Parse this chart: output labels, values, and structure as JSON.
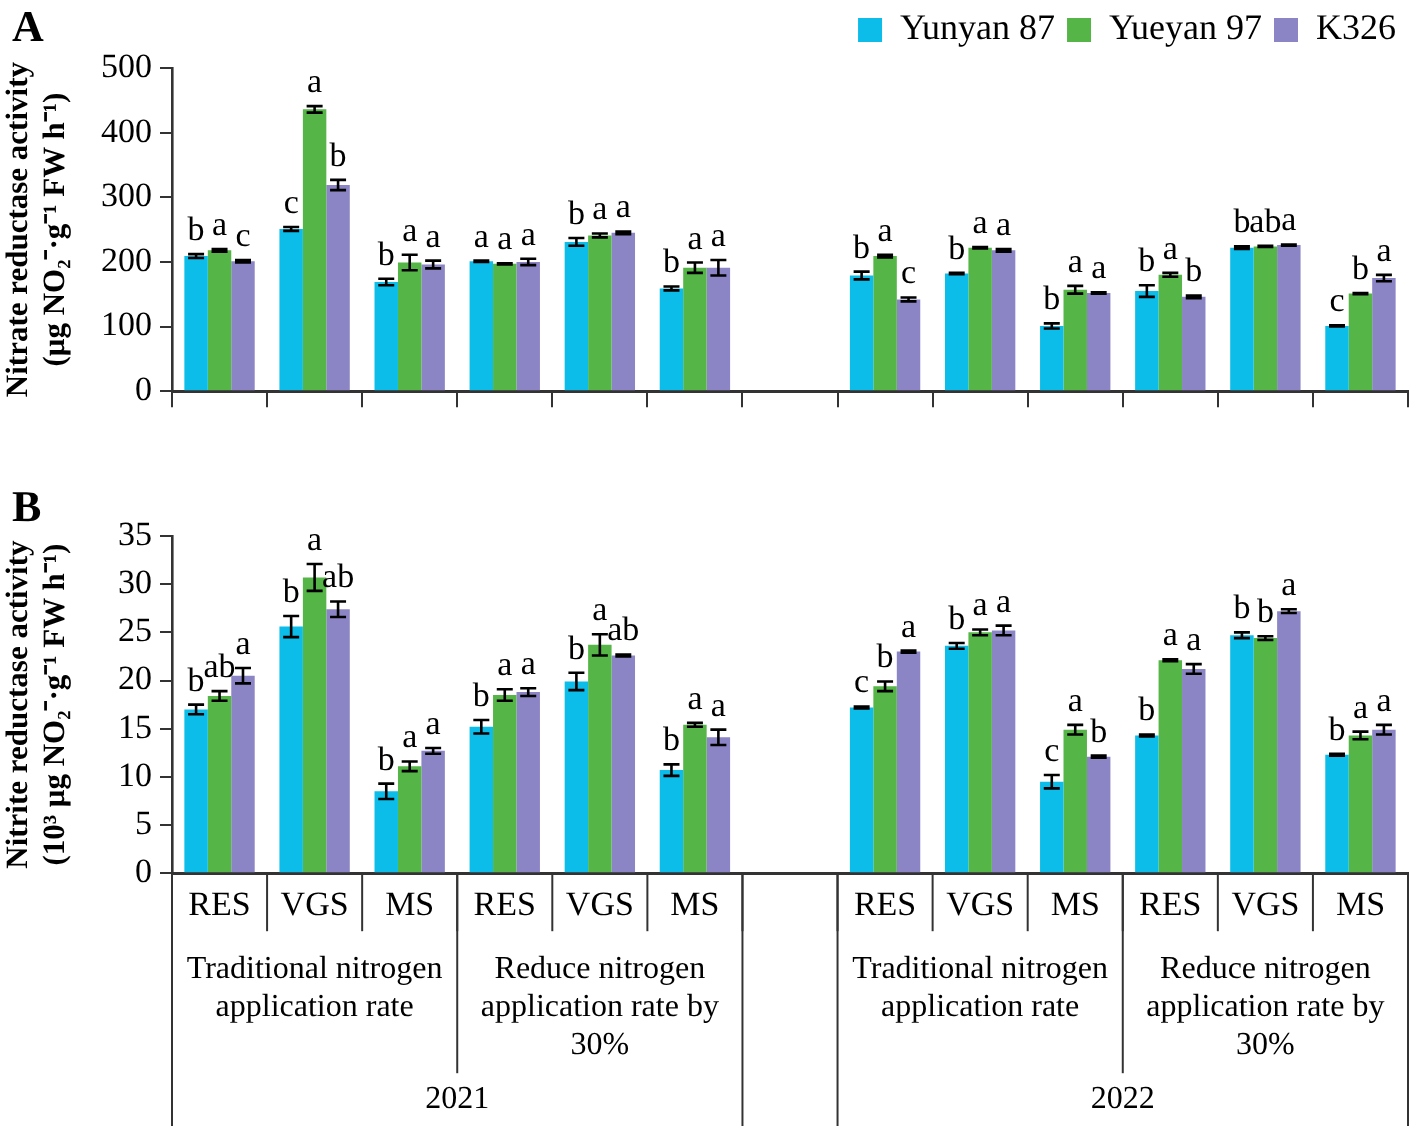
{
  "chart_data": [
    {
      "type": "bar",
      "title": "A",
      "ylabel": "Nitrate reductase activity\n(μg NO₂⁻·g⁻¹ FW h⁻¹)",
      "categories": [
        null,
        null,
        null,
        null,
        null,
        null,
        null,
        null,
        null,
        null,
        null,
        null,
        null
      ],
      "series": [
        {
          "name": "Yunyan 87",
          "color": "#0bbde8",
          "values": [
            209,
            251,
            169,
            201,
            231,
            159,
            null,
            179,
            182,
            101,
            155,
            222,
            101
          ],
          "errors": [
            3,
            3,
            5,
            1,
            6,
            3,
            null,
            6,
            1,
            4,
            9,
            2,
            1
          ],
          "value_labels": [
            "b",
            "c",
            "b",
            "a",
            "b",
            "b",
            null,
            "b",
            "b",
            "b",
            "b",
            "b",
            "c"
          ]
        },
        {
          "name": "Yueyan 97",
          "color": "#55b547",
          "values": [
            218,
            436,
            199,
            197,
            241,
            191,
            null,
            209,
            222,
            157,
            180,
            224,
            151
          ],
          "errors": [
            2,
            5,
            12,
            1,
            3,
            8,
            null,
            2,
            1,
            6,
            3,
            1,
            1
          ],
          "value_labels": [
            "a",
            "a",
            "a",
            "a",
            "a",
            "a",
            null,
            "a",
            "a",
            "a",
            "a",
            "ab",
            "b"
          ]
        },
        {
          "name": "K326",
          "color": "#8c85c5",
          "values": [
            201,
            319,
            196,
            200,
            245,
            191,
            null,
            142,
            218,
            152,
            146,
            226,
            175
          ],
          "errors": [
            2,
            8,
            6,
            5,
            2,
            12,
            null,
            3,
            2,
            1,
            2,
            1,
            5
          ],
          "value_labels": [
            "c",
            "b",
            "a",
            "a",
            "a",
            "a",
            null,
            "c",
            "a",
            "a",
            "b",
            "a",
            "a"
          ]
        }
      ],
      "ylim": [
        0,
        500
      ],
      "yticks": [
        0,
        100,
        200,
        300,
        400,
        500
      ],
      "grid": false,
      "legend": "top right"
    },
    {
      "type": "bar",
      "title": "B",
      "ylabel": "Nitrite reductase activity\n(10³ μg NO₂⁻·g⁻¹ FW h⁻¹)",
      "categories": [
        "RES",
        "VGS",
        "MS",
        "RES",
        "VGS",
        "MS",
        null,
        "RES",
        "VGS",
        "MS",
        "RES",
        "VGS",
        "MS"
      ],
      "series": [
        {
          "color": "#0bbde8",
          "values": [
            17.0,
            25.6,
            8.5,
            15.2,
            19.9,
            10.7,
            null,
            17.2,
            23.6,
            9.5,
            14.3,
            24.7,
            12.3
          ],
          "errors": [
            0.5,
            1.1,
            0.8,
            0.7,
            0.9,
            0.6,
            null,
            0.1,
            0.3,
            0.7,
            0.1,
            0.3,
            0.1
          ],
          "value_labels": [
            "b",
            "b",
            "b",
            "b",
            "b",
            "b",
            null,
            "c",
            "b",
            "c",
            "b",
            "b",
            "b"
          ]
        },
        {
          "color": "#55b547",
          "values": [
            18.4,
            30.7,
            11.1,
            18.5,
            23.7,
            15.4,
            null,
            19.4,
            25.0,
            14.9,
            22.1,
            24.4,
            14.3
          ],
          "errors": [
            0.5,
            1.4,
            0.5,
            0.6,
            1.1,
            0.2,
            null,
            0.5,
            0.3,
            0.5,
            0.1,
            0.2,
            0.4
          ],
          "value_labels": [
            "ab",
            "a",
            "a",
            "a",
            "a",
            "a",
            null,
            "b",
            "a",
            "a",
            "a",
            "b",
            "a"
          ]
        },
        {
          "color": "#8c85c5",
          "values": [
            20.5,
            27.4,
            12.7,
            18.8,
            22.6,
            14.1,
            null,
            23.0,
            25.2,
            12.1,
            21.2,
            27.2,
            14.9
          ],
          "errors": [
            0.8,
            0.8,
            0.3,
            0.4,
            0.1,
            0.8,
            null,
            0.1,
            0.5,
            0.1,
            0.5,
            0.2,
            0.5
          ],
          "value_labels": [
            "a",
            "ab",
            "a",
            "a",
            "ab",
            "a",
            null,
            "a",
            "a",
            "b",
            "a",
            "a",
            "a"
          ]
        }
      ],
      "ylim": [
        0,
        35
      ],
      "yticks": [
        0,
        5,
        10,
        15,
        20,
        25,
        30,
        35
      ],
      "grid": false,
      "annotations": [
        "Traditional nitrogen application rate",
        "Reduce nitrogen application rate by 30%",
        "Traditional nitrogen application rate",
        "Reduce nitrogen application rate by 30%",
        "2021",
        "2022"
      ]
    }
  ]
}
